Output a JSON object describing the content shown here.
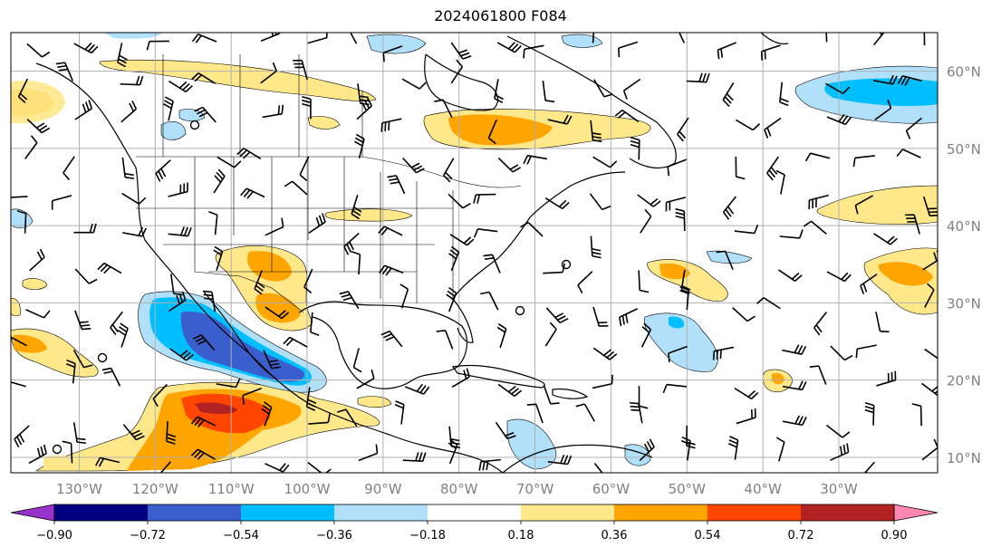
{
  "title": "2024061800 F084",
  "map": {
    "lon_range": [
      -139,
      -17
    ],
    "lat_range": [
      8,
      65
    ],
    "lon_ticks": [
      {
        "value": -130,
        "label": "130°W"
      },
      {
        "value": -120,
        "label": "120°W"
      },
      {
        "value": -110,
        "label": "110°W"
      },
      {
        "value": -100,
        "label": "100°W"
      },
      {
        "value": -90,
        "label": "90°W"
      },
      {
        "value": -80,
        "label": "80°W"
      },
      {
        "value": -70,
        "label": "70°W"
      },
      {
        "value": -60,
        "label": "60°W"
      },
      {
        "value": -50,
        "label": "50°W"
      },
      {
        "value": -40,
        "label": "40°W"
      },
      {
        "value": -30,
        "label": "30°W"
      }
    ],
    "lat_ticks": [
      {
        "value": 60,
        "label": "60°N"
      },
      {
        "value": 50,
        "label": "50°N"
      },
      {
        "value": 40,
        "label": "40°N"
      },
      {
        "value": 30,
        "label": "30°N"
      },
      {
        "value": 20,
        "label": "20°N"
      },
      {
        "value": 10,
        "label": "10°N"
      }
    ],
    "grid": true
  },
  "colorbar": {
    "levels": [
      "−0.90",
      "−0.72",
      "−0.54",
      "−0.36",
      "−0.18",
      "0.18",
      "0.36",
      "0.54",
      "0.72",
      "0.90"
    ],
    "colors": [
      "#9932cc",
      "#000080",
      "#3a5fcd",
      "#00bfff",
      "#b0e0fa",
      "#ffffff",
      "#ffe88a",
      "#ffa500",
      "#ff4500",
      "#b22222",
      "#ff88b0"
    ],
    "extend": "both"
  },
  "colors": {
    "coast": "#000000",
    "grid": "#b0b0b0",
    "border": "#000000"
  }
}
